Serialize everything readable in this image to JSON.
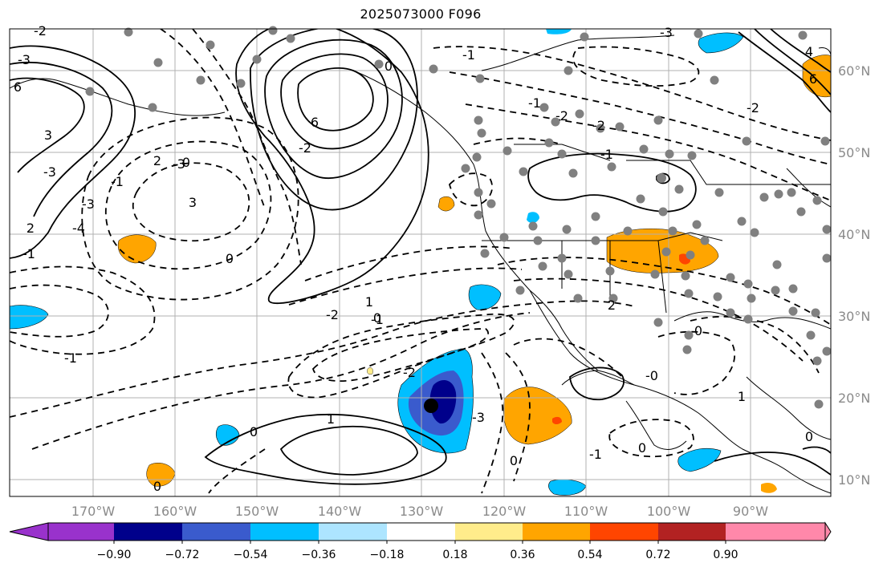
{
  "title": "2025073000 F096",
  "map": {
    "lon_labels": [
      "170°W",
      "160°W",
      "150°W",
      "140°W",
      "130°W",
      "120°W",
      "110°W",
      "100°W",
      "90°W"
    ],
    "lat_labels": [
      "60°N",
      "50°N",
      "40°N",
      "30°N",
      "20°N",
      "10°N"
    ],
    "gridline_color": "#b0b0b0",
    "coastline_color": "#000000",
    "storm_center_marker": "black-dot",
    "station_marker_color": "#808080"
  },
  "colorbar": {
    "tick_labels": [
      "−0.90",
      "−0.72",
      "−0.54",
      "−0.36",
      "−0.18",
      "0.18",
      "0.36",
      "0.54",
      "0.72",
      "0.90"
    ],
    "colors": [
      "#9932cc",
      "#00008b",
      "#3a5bcd",
      "#00bfff",
      "#ade5ff",
      "#ffffff",
      "#ffec8b",
      "#ffa500",
      "#ff4500",
      "#b22222",
      "#ff88aa"
    ]
  },
  "contour_labels": [
    "-2",
    "-3",
    "6",
    "6",
    "-3",
    "-3",
    "0",
    "6",
    "-2",
    "-3",
    "4",
    "3",
    "-2",
    "2",
    "-2",
    "-1",
    "3",
    "-3",
    "-4",
    "-1",
    "-2",
    "0",
    "1",
    "0",
    "2",
    "-2",
    "-1",
    "0",
    "1",
    "0",
    "0",
    "-1",
    "0",
    "-1",
    "0",
    "-0",
    "-1",
    "0",
    "1",
    "-3",
    "-2",
    "0",
    "-1",
    "2",
    "-1"
  ]
}
